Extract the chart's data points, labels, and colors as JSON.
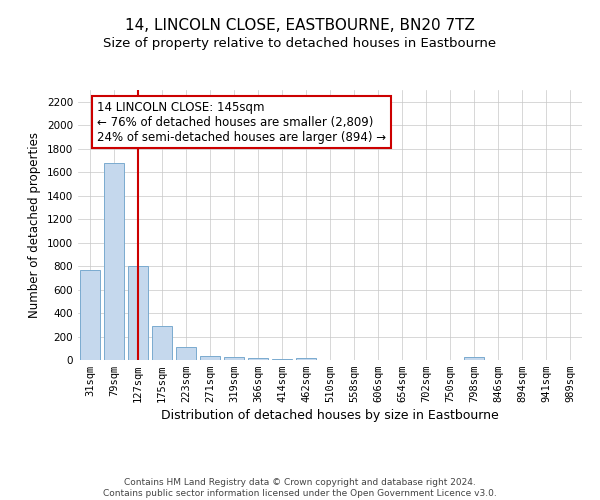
{
  "title": "14, LINCOLN CLOSE, EASTBOURNE, BN20 7TZ",
  "subtitle": "Size of property relative to detached houses in Eastbourne",
  "xlabel": "Distribution of detached houses by size in Eastbourne",
  "ylabel": "Number of detached properties",
  "categories": [
    "31sqm",
    "79sqm",
    "127sqm",
    "175sqm",
    "223sqm",
    "271sqm",
    "319sqm",
    "366sqm",
    "414sqm",
    "462sqm",
    "510sqm",
    "558sqm",
    "606sqm",
    "654sqm",
    "702sqm",
    "750sqm",
    "798sqm",
    "846sqm",
    "894sqm",
    "941sqm",
    "989sqm"
  ],
  "values": [
    770,
    1680,
    800,
    290,
    110,
    38,
    22,
    15,
    12,
    18,
    0,
    0,
    0,
    0,
    0,
    0,
    22,
    0,
    0,
    0,
    0
  ],
  "bar_color": "#c5d8ed",
  "bar_edge_color": "#7aaacf",
  "vline_x": 2.0,
  "vline_color": "#cc0000",
  "annotation_box_text": "14 LINCOLN CLOSE: 145sqm\n← 76% of detached houses are smaller (2,809)\n24% of semi-detached houses are larger (894) →",
  "box_edge_color": "#cc0000",
  "ylim": [
    0,
    2300
  ],
  "yticks": [
    0,
    200,
    400,
    600,
    800,
    1000,
    1200,
    1400,
    1600,
    1800,
    2000,
    2200
  ],
  "grid_color": "#c8c8c8",
  "background_color": "#ffffff",
  "footnote": "Contains HM Land Registry data © Crown copyright and database right 2024.\nContains public sector information licensed under the Open Government Licence v3.0.",
  "title_fontsize": 11,
  "subtitle_fontsize": 9.5,
  "xlabel_fontsize": 9,
  "ylabel_fontsize": 8.5,
  "tick_fontsize": 7.5,
  "annotation_fontsize": 8.5,
  "footnote_fontsize": 6.5
}
